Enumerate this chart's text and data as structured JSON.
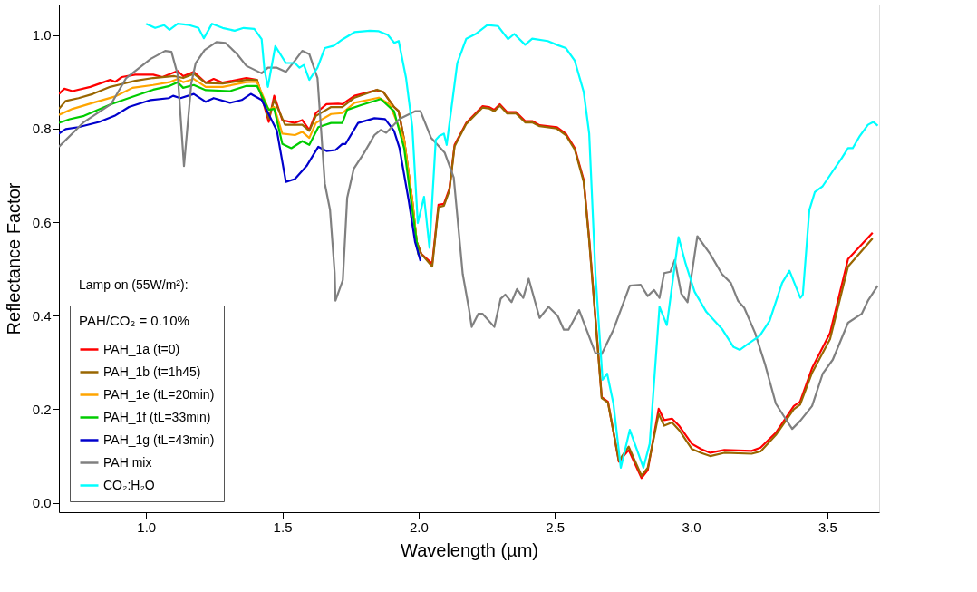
{
  "chart_data": {
    "type": "line",
    "xlabel": "Wavelength (µm)",
    "ylabel": "Reflectance Factor",
    "legend_title": "PAH/CO₂ = 0.10%",
    "annotations": [
      "Lamp on (55W/m²):"
    ],
    "xlim": [
      0.68,
      3.69
    ],
    "ylim": [
      -0.02,
      1.065
    ],
    "xticks": [
      {
        "value": 1,
        "label": "1.0"
      },
      1.5,
      {
        "value": 2,
        "label": "2.0"
      },
      2.5,
      {
        "value": 3,
        "label": "3.0"
      },
      3.5
    ],
    "yticks": [
      {
        "value": 0,
        "label": "0.0"
      },
      0.2,
      0.4,
      0.6,
      0.8,
      {
        "value": 1,
        "label": "1.0"
      }
    ],
    "grid": false,
    "legend": "bottom left",
    "marker": "none",
    "line_style": "solid",
    "series": [
      {
        "name": "PAH_1a (t=0)",
        "color": "#ff0000",
        "x": [
          0.68,
          0.7,
          0.73,
          0.795,
          0.868,
          0.887,
          0.911,
          0.96,
          1.026,
          1.06,
          1.116,
          1.136,
          1.175,
          1.219,
          1.248,
          1.281,
          1.368,
          1.407,
          1.45,
          1.47,
          1.5,
          1.546,
          1.573,
          1.599,
          1.623,
          1.662,
          1.705,
          1.72,
          1.765,
          1.844,
          1.871,
          1.91,
          1.927,
          1.947,
          1.977,
          1.993,
          2.01,
          2.05,
          2.073,
          2.093,
          2.113,
          2.132,
          2.175,
          2.235,
          2.258,
          2.278,
          2.298,
          2.325,
          2.358,
          2.391,
          2.417,
          2.444,
          2.507,
          2.54,
          2.573,
          2.606,
          2.626,
          2.672,
          2.695,
          2.735,
          2.771,
          2.818,
          2.841,
          2.881,
          2.901,
          2.93,
          2.957,
          3.003,
          3.036,
          3.07,
          3.122,
          3.222,
          3.255,
          3.311,
          3.377,
          3.4,
          3.444,
          3.51,
          3.576,
          3.666
        ],
        "values": [
          0.874,
          0.885,
          0.88,
          0.889,
          0.904,
          0.9,
          0.91,
          0.915,
          0.915,
          0.91,
          0.923,
          0.912,
          0.921,
          0.898,
          0.906,
          0.898,
          0.908,
          0.904,
          0.814,
          0.87,
          0.818,
          0.812,
          0.818,
          0.797,
          0.833,
          0.852,
          0.853,
          0.852,
          0.87,
          0.882,
          0.878,
          0.846,
          0.837,
          0.776,
          0.645,
          0.558,
          0.532,
          0.511,
          0.637,
          0.639,
          0.671,
          0.765,
          0.812,
          0.848,
          0.846,
          0.84,
          0.852,
          0.835,
          0.835,
          0.816,
          0.816,
          0.807,
          0.803,
          0.789,
          0.758,
          0.69,
          0.564,
          0.226,
          0.216,
          0.088,
          0.113,
          0.053,
          0.07,
          0.201,
          0.177,
          0.18,
          0.164,
          0.126,
          0.115,
          0.107,
          0.113,
          0.111,
          0.118,
          0.15,
          0.207,
          0.216,
          0.288,
          0.363,
          0.521,
          0.577
        ]
      },
      {
        "name": "PAH_1b (t=1h45)",
        "color": "#996600",
        "x": [
          0.68,
          0.705,
          0.752,
          0.805,
          0.868,
          0.917,
          0.96,
          1.026,
          1.103,
          1.136,
          1.175,
          1.219,
          1.281,
          1.368,
          1.407,
          1.45,
          1.47,
          1.51,
          1.573,
          1.599,
          1.623,
          1.679,
          1.72,
          1.765,
          1.848,
          1.871,
          1.91,
          1.927,
          1.947,
          1.977,
          1.993,
          2.01,
          2.05,
          2.073,
          2.093,
          2.113,
          2.132,
          2.175,
          2.235,
          2.258,
          2.278,
          2.298,
          2.325,
          2.358,
          2.391,
          2.417,
          2.444,
          2.507,
          2.54,
          2.573,
          2.606,
          2.626,
          2.672,
          2.695,
          2.735,
          2.771,
          2.818,
          2.841,
          2.881,
          2.901,
          2.93,
          2.957,
          3.003,
          3.036,
          3.07,
          3.122,
          3.222,
          3.255,
          3.311,
          3.377,
          3.4,
          3.444,
          3.51,
          3.576,
          3.666
        ],
        "values": [
          0.842,
          0.859,
          0.865,
          0.874,
          0.889,
          0.896,
          0.902,
          0.908,
          0.912,
          0.908,
          0.917,
          0.897,
          0.896,
          0.904,
          0.904,
          0.821,
          0.861,
          0.808,
          0.808,
          0.795,
          0.827,
          0.846,
          0.846,
          0.866,
          0.883,
          0.878,
          0.846,
          0.837,
          0.776,
          0.645,
          0.558,
          0.532,
          0.505,
          0.632,
          0.635,
          0.667,
          0.762,
          0.81,
          0.845,
          0.843,
          0.837,
          0.849,
          0.832,
          0.832,
          0.813,
          0.813,
          0.805,
          0.8,
          0.786,
          0.755,
          0.686,
          0.56,
          0.224,
          0.214,
          0.09,
          0.12,
          0.058,
          0.075,
          0.19,
          0.165,
          0.172,
          0.155,
          0.115,
          0.107,
          0.1,
          0.107,
          0.105,
          0.11,
          0.145,
          0.2,
          0.21,
          0.278,
          0.35,
          0.505,
          0.565
        ]
      },
      {
        "name": "PAH_1e (tL=20min)",
        "color": "#ffa500",
        "x": [
          0.68,
          0.73,
          0.805,
          0.884,
          0.95,
          1.026,
          1.086,
          1.116,
          1.136,
          1.175,
          1.219,
          1.281,
          1.368,
          1.407,
          1.45,
          1.47,
          1.5,
          1.546,
          1.573,
          1.599,
          1.623,
          1.679,
          1.72,
          1.765,
          1.854,
          1.894,
          1.947,
          1.977,
          1.993,
          2.0
        ],
        "values": [
          0.829,
          0.842,
          0.855,
          0.868,
          0.887,
          0.893,
          0.899,
          0.906,
          0.899,
          0.906,
          0.889,
          0.889,
          0.899,
          0.9,
          0.84,
          0.846,
          0.789,
          0.786,
          0.793,
          0.78,
          0.812,
          0.831,
          0.833,
          0.855,
          0.866,
          0.852,
          0.776,
          0.645,
          0.558,
          0.53
        ]
      },
      {
        "name": "PAH_1f (tL=33min)",
        "color": "#00cc00",
        "x": [
          0.68,
          0.719,
          0.772,
          0.871,
          0.95,
          1.026,
          1.086,
          1.116,
          1.136,
          1.175,
          1.219,
          1.308,
          1.368,
          1.407,
          1.45,
          1.47,
          1.5,
          1.533,
          1.573,
          1.599,
          1.632,
          1.679,
          1.72,
          1.738,
          1.788,
          1.861,
          1.91,
          1.947,
          1.977,
          2.0
        ],
        "values": [
          0.812,
          0.82,
          0.827,
          0.852,
          0.868,
          0.883,
          0.891,
          0.899,
          0.887,
          0.893,
          0.882,
          0.88,
          0.891,
          0.891,
          0.84,
          0.842,
          0.767,
          0.758,
          0.773,
          0.765,
          0.803,
          0.812,
          0.812,
          0.84,
          0.85,
          0.863,
          0.837,
          0.758,
          0.626,
          0.53
        ]
      },
      {
        "name": "PAH_1g (tL=43min)",
        "color": "#0000cc",
        "x": [
          0.68,
          0.705,
          0.752,
          0.828,
          0.884,
          0.937,
          1.017,
          1.083,
          1.099,
          1.126,
          1.175,
          1.219,
          1.248,
          1.308,
          1.351,
          1.384,
          1.424,
          1.48,
          1.513,
          1.546,
          1.589,
          1.632,
          1.662,
          1.695,
          1.72,
          1.732,
          1.778,
          1.838,
          1.877,
          1.91,
          1.93,
          1.964,
          1.987,
          2.007
        ],
        "values": [
          0.789,
          0.799,
          0.803,
          0.814,
          0.827,
          0.846,
          0.861,
          0.865,
          0.87,
          0.865,
          0.874,
          0.857,
          0.865,
          0.855,
          0.861,
          0.874,
          0.861,
          0.795,
          0.686,
          0.692,
          0.72,
          0.761,
          0.752,
          0.754,
          0.767,
          0.767,
          0.812,
          0.822,
          0.82,
          0.795,
          0.758,
          0.645,
          0.558,
          0.517
        ]
      },
      {
        "name": "PAH mix",
        "color": "#808080",
        "x": [
          0.68,
          0.772,
          0.871,
          0.927,
          1.017,
          1.07,
          1.093,
          1.116,
          1.139,
          1.166,
          1.182,
          1.215,
          1.258,
          1.291,
          1.334,
          1.368,
          1.424,
          1.447,
          1.48,
          1.513,
          1.546,
          1.573,
          1.599,
          1.629,
          1.656,
          1.675,
          1.692,
          1.695,
          1.722,
          1.738,
          1.762,
          1.798,
          1.838,
          1.861,
          1.881,
          1.931,
          1.987,
          2.007,
          2.046,
          2.096,
          2.129,
          2.162,
          2.185,
          2.195,
          2.219,
          2.235,
          2.278,
          2.301,
          2.318,
          2.341,
          2.361,
          2.384,
          2.404,
          2.444,
          2.477,
          2.51,
          2.533,
          2.55,
          2.589,
          2.649,
          2.672,
          2.715,
          2.775,
          2.815,
          2.841,
          2.864,
          2.884,
          2.901,
          2.924,
          2.94,
          2.964,
          2.987,
          3.023,
          3.07,
          3.113,
          3.146,
          3.172,
          3.195,
          3.235,
          3.272,
          3.311,
          3.344,
          3.371,
          3.4,
          3.444,
          3.483,
          3.52,
          3.576,
          3.626,
          3.649,
          3.685
        ],
        "values": [
          0.761,
          0.814,
          0.852,
          0.908,
          0.949,
          0.966,
          0.964,
          0.915,
          0.72,
          0.897,
          0.94,
          0.968,
          0.985,
          0.983,
          0.959,
          0.934,
          0.918,
          0.93,
          0.93,
          0.921,
          0.945,
          0.966,
          0.959,
          0.908,
          0.682,
          0.626,
          0.492,
          0.432,
          0.476,
          0.652,
          0.714,
          0.746,
          0.786,
          0.797,
          0.791,
          0.821,
          0.837,
          0.837,
          0.78,
          0.748,
          0.695,
          0.489,
          0.414,
          0.376,
          0.404,
          0.404,
          0.376,
          0.436,
          0.445,
          0.429,
          0.457,
          0.438,
          0.479,
          0.395,
          0.419,
          0.4,
          0.37,
          0.37,
          0.412,
          0.32,
          0.318,
          0.37,
          0.464,
          0.466,
          0.442,
          0.455,
          0.438,
          0.491,
          0.494,
          0.519,
          0.447,
          0.429,
          0.57,
          0.532,
          0.489,
          0.47,
          0.432,
          0.417,
          0.363,
          0.295,
          0.212,
          0.182,
          0.158,
          0.175,
          0.207,
          0.276,
          0.306,
          0.385,
          0.404,
          0.432,
          0.464
        ]
      },
      {
        "name": "CO₂:H₂O",
        "color": "#00ffff",
        "x": [
          1.0,
          1.033,
          1.066,
          1.086,
          1.116,
          1.159,
          1.192,
          1.212,
          1.242,
          1.281,
          1.325,
          1.358,
          1.397,
          1.424,
          1.434,
          1.447,
          1.474,
          1.513,
          1.546,
          1.563,
          1.579,
          1.599,
          1.629,
          1.656,
          1.689,
          1.722,
          1.765,
          1.821,
          1.854,
          1.887,
          1.911,
          1.927,
          1.954,
          1.977,
          1.997,
          2.02,
          2.04,
          2.063,
          2.076,
          2.093,
          2.103,
          2.142,
          2.175,
          2.209,
          2.252,
          2.291,
          2.328,
          2.351,
          2.391,
          2.417,
          2.474,
          2.507,
          2.54,
          2.573,
          2.606,
          2.626,
          2.649,
          2.675,
          2.692,
          2.715,
          2.742,
          2.775,
          2.825,
          2.848,
          2.884,
          2.911,
          2.954,
          2.98,
          3.013,
          3.056,
          3.113,
          3.156,
          3.179,
          3.205,
          3.252,
          3.288,
          3.334,
          3.361,
          3.401,
          3.41,
          3.434,
          3.454,
          3.483,
          3.52,
          3.553,
          3.576,
          3.593,
          3.619,
          3.649,
          3.669,
          3.685
        ],
        "values": [
          1.024,
          1.015,
          1.021,
          1.011,
          1.024,
          1.021,
          1.015,
          0.993,
          1.024,
          1.015,
          1.009,
          1.015,
          1.013,
          0.991,
          0.927,
          0.889,
          0.976,
          0.94,
          0.94,
          0.93,
          0.936,
          0.904,
          0.93,
          0.972,
          0.977,
          0.991,
          1.006,
          1.009,
          1.008,
          1.0,
          0.983,
          0.987,
          0.908,
          0.803,
          0.598,
          0.654,
          0.545,
          0.776,
          0.784,
          0.789,
          0.765,
          0.94,
          0.992,
          1.002,
          1.021,
          1.019,
          0.991,
          1.002,
          0.979,
          0.992,
          0.987,
          0.979,
          0.972,
          0.945,
          0.878,
          0.789,
          0.489,
          0.263,
          0.276,
          0.212,
          0.075,
          0.156,
          0.075,
          0.126,
          0.419,
          0.38,
          0.568,
          0.511,
          0.451,
          0.408,
          0.372,
          0.333,
          0.327,
          0.338,
          0.357,
          0.389,
          0.47,
          0.496,
          0.438,
          0.445,
          0.626,
          0.664,
          0.677,
          0.709,
          0.737,
          0.758,
          0.758,
          0.784,
          0.808,
          0.814,
          0.806
        ]
      }
    ]
  }
}
